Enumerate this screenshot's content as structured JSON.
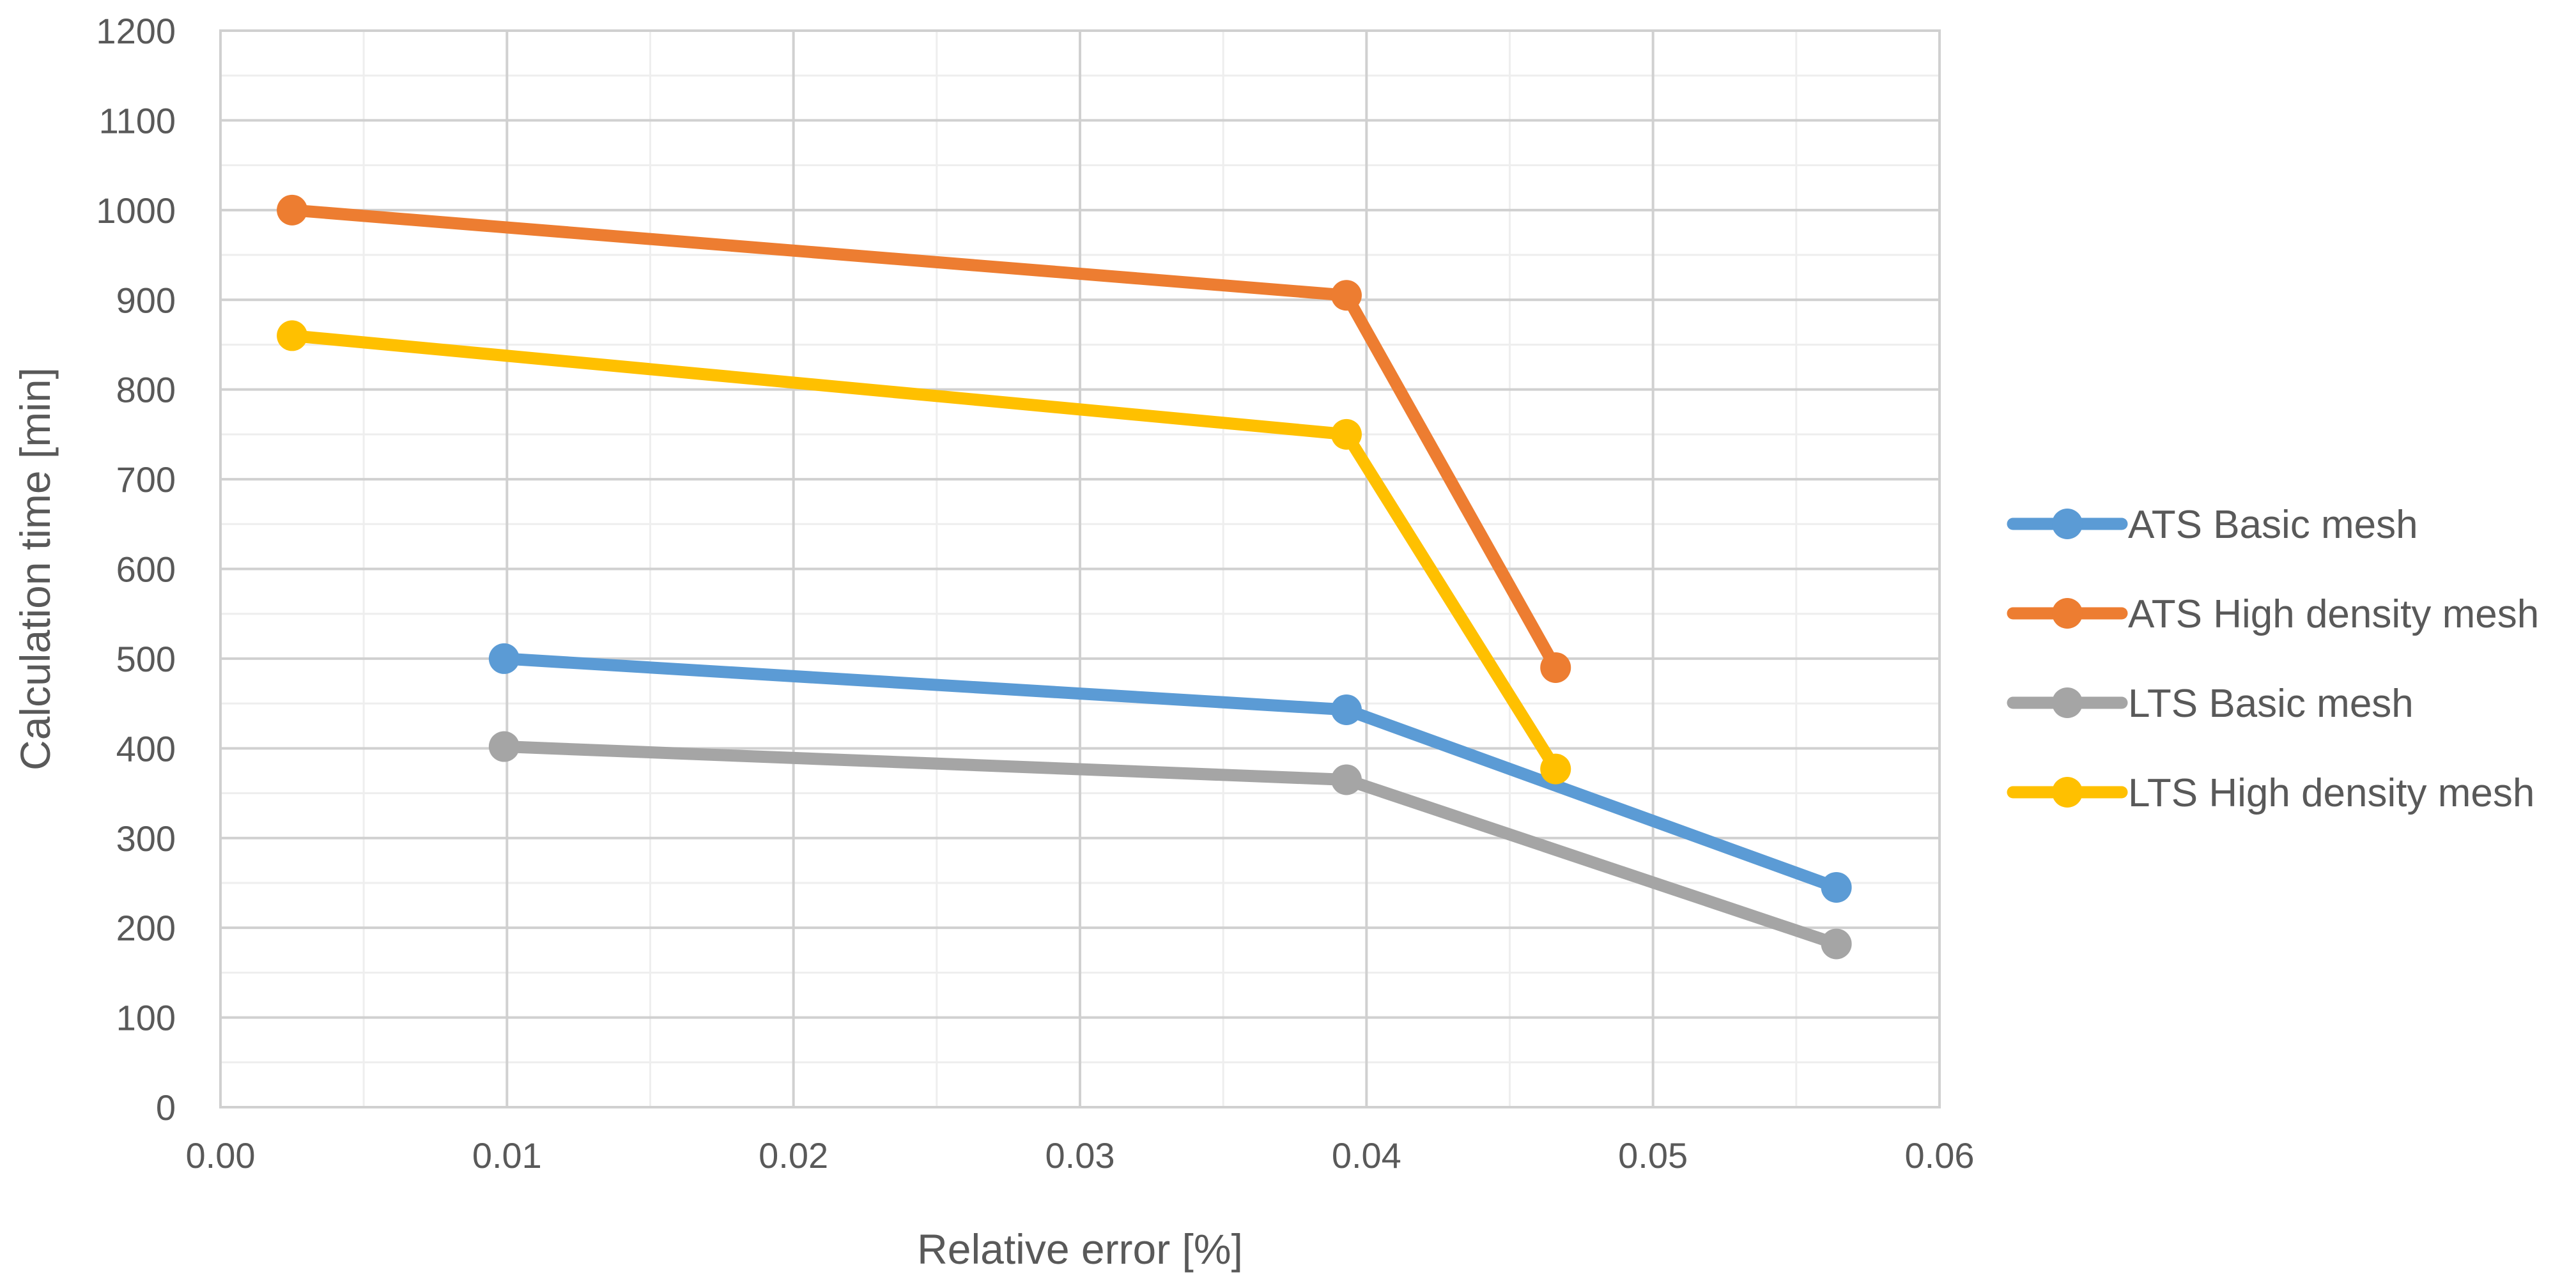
{
  "chart_data": {
    "type": "line",
    "xlabel": "Relative error  [%]",
    "ylabel": "Calculation time [min]",
    "xlim": [
      0,
      0.06
    ],
    "ylim": [
      0,
      1200
    ],
    "x_ticks": [
      0,
      0.01,
      0.02,
      0.03,
      0.04,
      0.05,
      0.06
    ],
    "x_tick_labels": [
      "0.00",
      "0.01",
      "0.02",
      "0.03",
      "0.04",
      "0.05",
      "0.06"
    ],
    "y_ticks": [
      0,
      100,
      200,
      300,
      400,
      500,
      600,
      700,
      800,
      900,
      1000,
      1100,
      1200
    ],
    "y_tick_labels": [
      "0",
      "100",
      "200",
      "300",
      "400",
      "500",
      "600",
      "700",
      "800",
      "900",
      "1000",
      "1100",
      "1200"
    ],
    "x_minor_step": 0.005,
    "y_minor_step": 50,
    "grid": true,
    "legend_position": "right",
    "series": [
      {
        "name": "ATS Basic mesh",
        "color": "#5B9BD5",
        "points": [
          {
            "x": 0.0099,
            "y": 500
          },
          {
            "x": 0.0393,
            "y": 443
          },
          {
            "x": 0.0564,
            "y": 245
          }
        ]
      },
      {
        "name": "ATS High density mesh",
        "color": "#ED7D31",
        "points": [
          {
            "x": 0.0025,
            "y": 1000
          },
          {
            "x": 0.0393,
            "y": 905
          },
          {
            "x": 0.0466,
            "y": 490
          }
        ]
      },
      {
        "name": "LTS Basic mesh",
        "color": "#A5A5A5",
        "points": [
          {
            "x": 0.0099,
            "y": 402
          },
          {
            "x": 0.0393,
            "y": 365
          },
          {
            "x": 0.0564,
            "y": 182
          }
        ]
      },
      {
        "name": "LTS High density mesh",
        "color": "#FFC000",
        "points": [
          {
            "x": 0.0025,
            "y": 860
          },
          {
            "x": 0.0393,
            "y": 750
          },
          {
            "x": 0.0466,
            "y": 377
          }
        ]
      }
    ]
  }
}
